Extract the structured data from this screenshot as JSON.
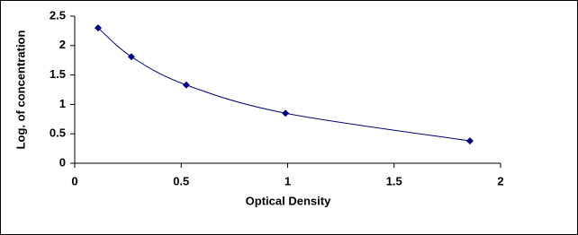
{
  "chart_data": {
    "type": "scatter",
    "x_label": "Optical Density",
    "y_label": "Log. of concentration",
    "series": [
      {
        "color": "#000080",
        "x": [
          0.11,
          0.266,
          0.524,
          0.99,
          1.856
        ],
        "values": [
          2.3,
          1.81,
          1.33,
          0.85,
          0.38
        ]
      }
    ],
    "xlim": [
      0,
      2
    ],
    "xticks": [
      0,
      0.5,
      1,
      1.5,
      2
    ],
    "ylim": [
      0,
      2.5
    ],
    "yticks": [
      0,
      0.5,
      1,
      1.5,
      2,
      2.5
    ],
    "grid": false,
    "smooth_line": true
  }
}
